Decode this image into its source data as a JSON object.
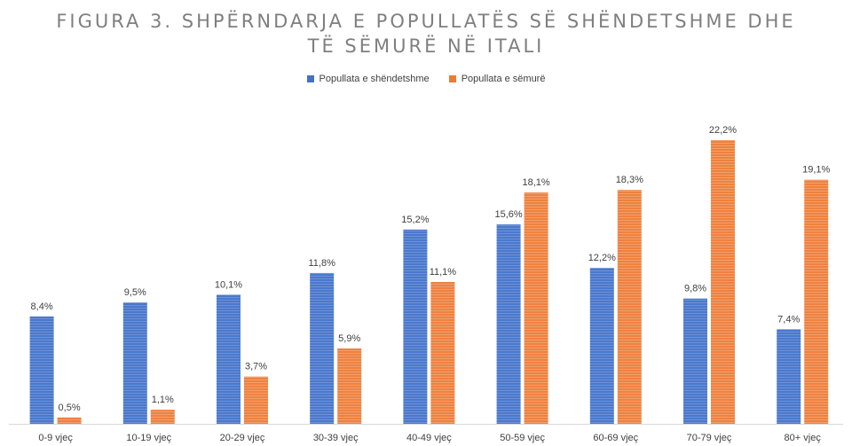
{
  "chart_data": {
    "type": "bar",
    "title_lines": [
      "FIGURA 3. SHPËRNDARJA E POPULLATËS SË SHËNDETSHME DHE",
      "TË SËMURË NË ITALI"
    ],
    "categories": [
      "0-9 vjeç",
      "10-19 vjeç",
      "20-29 vjeç",
      "30-39 vjeç",
      "40-49 vjeç",
      "50-59 vjeç",
      "60-69 vjeç",
      "70-79 vjeç",
      "80+ vjeç"
    ],
    "series": [
      {
        "name": "Popullata e shëndetshme",
        "color": "#4472c4",
        "values": [
          8.4,
          9.5,
          10.1,
          11.8,
          15.2,
          15.6,
          12.2,
          9.8,
          7.4
        ],
        "labels": [
          "8,4%",
          "9,5%",
          "10,1%",
          "11,8%",
          "15,2%",
          "15,6%",
          "12,2%",
          "9,8%",
          "7,4%"
        ]
      },
      {
        "name": "Popullata e sëmurë",
        "color": "#ed7d31",
        "values": [
          0.5,
          1.1,
          3.7,
          5.9,
          11.1,
          18.1,
          18.3,
          22.2,
          19.1
        ],
        "labels": [
          "0,5%",
          "1,1%",
          "3,7%",
          "5,9%",
          "11,1%",
          "18,1%",
          "18,3%",
          "22,2%",
          "19,1%"
        ]
      }
    ],
    "ylim": [
      0,
      22.2
    ],
    "xlabel": "",
    "ylabel": "",
    "grid": false,
    "legend_position": "top-center"
  }
}
